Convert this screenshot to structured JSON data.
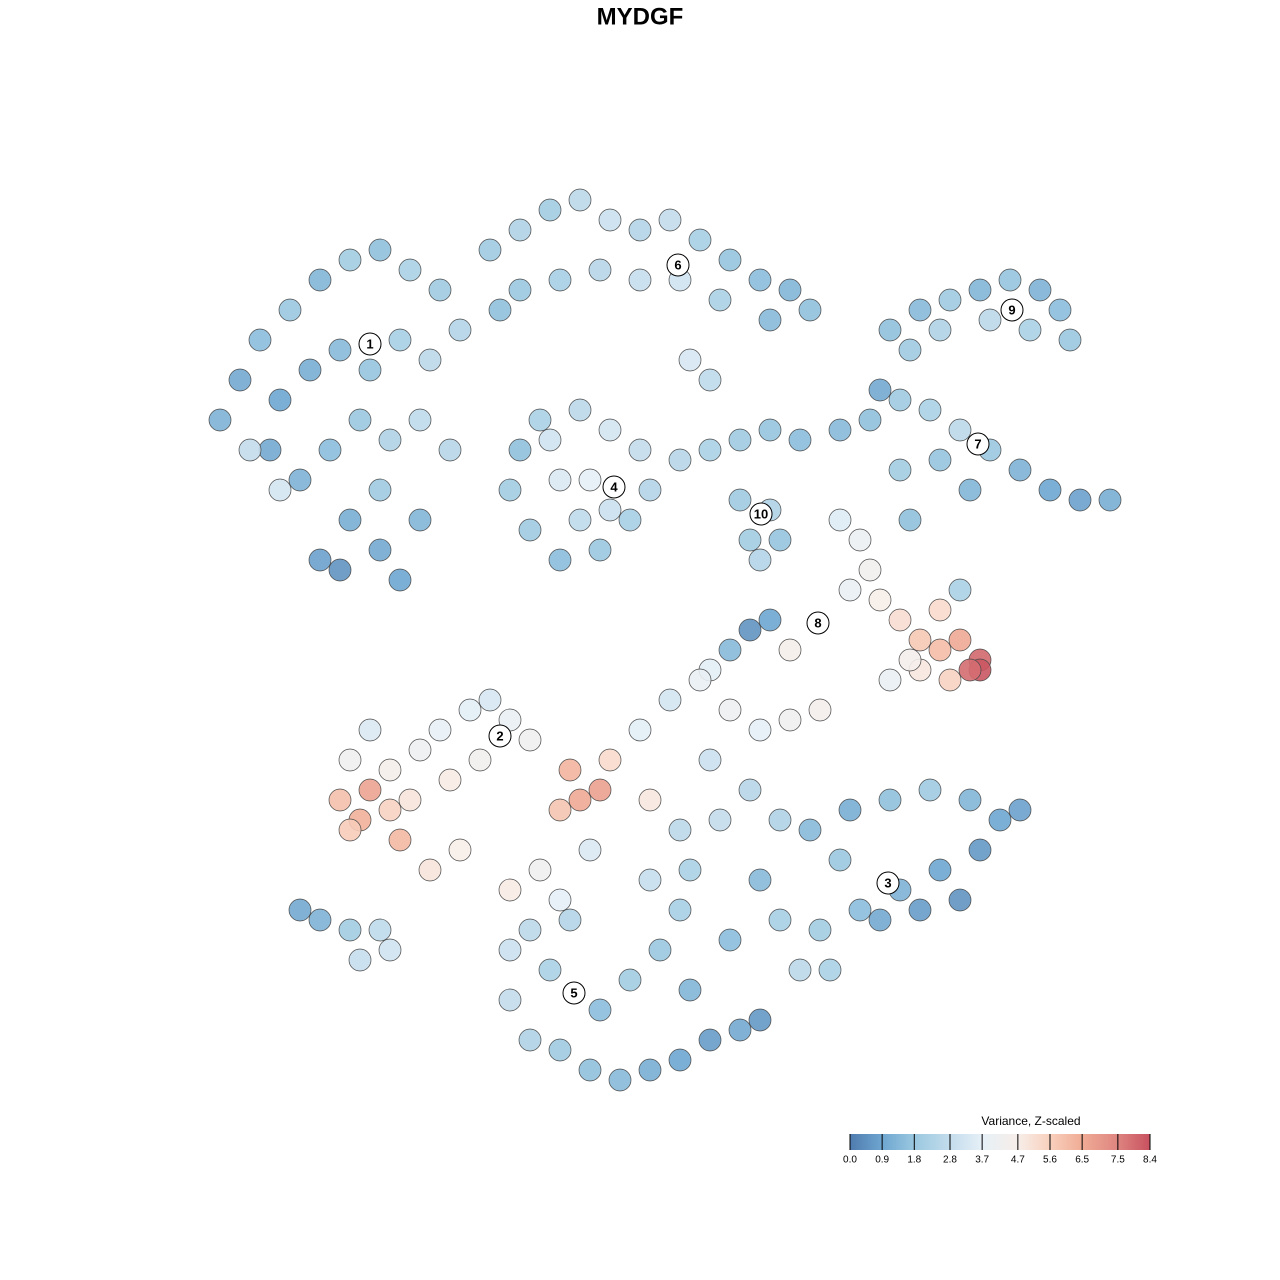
{
  "chart_data": {
    "type": "scatter",
    "title": "MYDGF",
    "xlim": [
      -64,
      64
    ],
    "ylim": [
      -64,
      64
    ],
    "x": [
      -42,
      -40,
      -38,
      -35,
      -32,
      -29,
      -26,
      -23,
      -20,
      -18,
      -21,
      -24,
      -27,
      -30,
      -33,
      -36,
      -37,
      -34,
      -31,
      -28,
      -25,
      -22,
      -19,
      -26,
      -29,
      -32,
      -30,
      -26,
      -22,
      -24,
      -39,
      -36,
      -15,
      -12,
      -9,
      -6,
      -3,
      0,
      3,
      6,
      9,
      12,
      15,
      17,
      13,
      8,
      4,
      0,
      -4,
      -8,
      -12,
      -14,
      5,
      7,
      -12,
      -10,
      -6,
      -3,
      0,
      1,
      -1,
      -4,
      -8,
      -11,
      -13,
      -8,
      -5,
      -3,
      -6,
      -9,
      4,
      7,
      10,
      13,
      16,
      10,
      13,
      11,
      14,
      12,
      25,
      28,
      31,
      34,
      37,
      40,
      42,
      43,
      39,
      35,
      30,
      27,
      20,
      23,
      26,
      29,
      32,
      35,
      38,
      41,
      44,
      47,
      30,
      26,
      33,
      27,
      24,
      20,
      22,
      23,
      21,
      24,
      26,
      28,
      30,
      32,
      34,
      34,
      33,
      31,
      28,
      25,
      27,
      30,
      32,
      11,
      13,
      9,
      15,
      7,
      -30,
      -28,
      -27,
      -29,
      -25,
      -24,
      -23,
      -25,
      -22,
      -20,
      -17,
      -15,
      -13,
      -11,
      -19,
      -16,
      -21,
      -18,
      -27,
      -29,
      -7,
      -6,
      -4,
      -8,
      -3,
      1,
      0,
      3,
      6,
      9,
      12,
      15,
      18,
      7,
      4,
      8,
      11,
      14,
      -5,
      -10,
      -13,
      1,
      5,
      -8,
      17,
      21,
      25,
      29,
      33,
      36,
      38,
      34,
      30,
      26,
      22,
      18,
      16,
      19,
      24,
      28,
      32,
      20,
      12,
      14,
      -13,
      -11,
      -9,
      -13,
      -11,
      -8,
      -5,
      -2,
      1,
      4,
      7,
      10,
      12,
      -4,
      -1,
      2,
      5,
      -7,
      4,
      9,
      -34,
      -32,
      -29,
      -26,
      -28,
      -25
    ],
    "y": [
      22,
      26,
      30,
      33,
      36,
      38,
      39,
      37,
      35,
      31,
      28,
      30,
      27,
      29,
      27,
      24,
      19,
      16,
      19,
      22,
      20,
      22,
      19,
      15,
      12,
      8,
      7,
      9,
      12,
      6,
      19,
      15,
      39,
      41,
      43,
      44,
      42,
      41,
      42,
      40,
      38,
      36,
      35,
      33,
      32,
      34,
      36,
      36,
      37,
      36,
      35,
      33,
      28,
      26,
      19,
      22,
      23,
      21,
      19,
      15,
      12,
      9,
      8,
      11,
      15,
      16,
      16,
      13,
      12,
      20,
      18,
      19,
      20,
      21,
      20,
      14,
      13,
      10,
      10,
      8,
      31,
      33,
      34,
      35,
      36,
      35,
      33,
      30,
      31,
      32,
      31,
      29,
      21,
      22,
      24,
      23,
      21,
      19,
      17,
      15,
      14,
      14,
      18,
      17,
      15,
      12,
      25,
      12,
      10,
      7,
      5,
      4,
      2,
      0,
      -1,
      0,
      -2,
      -3,
      -3,
      -4,
      -3,
      -4,
      -2,
      3,
      5,
      1,
      2,
      -1,
      -1,
      -3,
      -16,
      -18,
      -15,
      -19,
      -17,
      -20,
      -16,
      -13,
      -11,
      -9,
      -7,
      -6,
      -8,
      -10,
      -14,
      -12,
      -23,
      -21,
      -9,
      -12,
      -13,
      -16,
      -15,
      -17,
      -12,
      -16,
      -9,
      -6,
      -4,
      -7,
      -9,
      -8,
      -7,
      -12,
      -19,
      -18,
      -15,
      -18,
      -21,
      -23,
      -25,
      -24,
      -23,
      -26,
      -19,
      -17,
      -16,
      -15,
      -16,
      -18,
      -17,
      -21,
      -23,
      -25,
      -27,
      -29,
      -33,
      -33,
      -28,
      -27,
      -26,
      -22,
      -24,
      -28,
      -31,
      -29,
      -33,
      -36,
      -40,
      -41,
      -43,
      -44,
      -43,
      -42,
      -40,
      -39,
      -38,
      -37,
      -34,
      -31,
      -35,
      -28,
      -27,
      -30,
      -27,
      -28,
      -29,
      -29,
      -32,
      -31
    ],
    "values": [
      1.2,
      1.0,
      1.5,
      1.8,
      1.3,
      2.0,
      1.6,
      2.2,
      1.9,
      2.4,
      2.6,
      2.1,
      1.7,
      1.4,
      1.1,
      0.9,
      1.0,
      1.2,
      1.5,
      1.8,
      2.3,
      2.7,
      2.5,
      1.9,
      1.1,
      0.8,
      0.5,
      1.0,
      1.3,
      0.9,
      2.8,
      3.2,
      1.9,
      2.3,
      2.0,
      2.6,
      3.0,
      2.4,
      2.8,
      2.1,
      1.7,
      1.5,
      1.3,
      1.6,
      1.4,
      2.2,
      3.1,
      2.9,
      2.5,
      2.1,
      1.8,
      1.6,
      3.3,
      2.7,
      1.6,
      2.2,
      2.6,
      3.2,
      2.8,
      2.4,
      2.1,
      1.8,
      1.5,
      1.9,
      2.0,
      3.4,
      3.7,
      3.0,
      2.7,
      3.1,
      2.5,
      2.2,
      1.9,
      1.7,
      1.5,
      1.9,
      2.3,
      2.0,
      1.7,
      2.4,
      1.6,
      1.4,
      1.9,
      1.3,
      1.7,
      1.2,
      1.5,
      1.8,
      2.2,
      2.6,
      2.3,
      1.9,
      1.4,
      1.6,
      1.9,
      2.2,
      2.6,
      1.8,
      1.2,
      0.9,
      0.8,
      1.1,
      1.7,
      2.0,
      1.3,
      1.6,
      1.0,
      3.5,
      4.0,
      4.4,
      3.9,
      4.7,
      5.2,
      5.8,
      6.1,
      6.6,
      8.0,
      8.3,
      7.9,
      5.5,
      4.9,
      3.9,
      4.5,
      5.3,
      2.2,
      0.5,
      0.9,
      1.4,
      4.6,
      3.6,
      6.0,
      6.4,
      6.7,
      5.7,
      5.5,
      6.2,
      5.0,
      4.6,
      4.1,
      3.8,
      3.6,
      3.3,
      3.9,
      4.3,
      4.8,
      4.4,
      5.0,
      4.7,
      3.4,
      4.2,
      6.3,
      6.6,
      6.8,
      5.9,
      5.3,
      4.9,
      3.6,
      3.2,
      3.9,
      4.1,
      3.7,
      4.3,
      4.5,
      3.0,
      2.6,
      2.8,
      2.5,
      2.3,
      3.4,
      4.2,
      4.8,
      2.9,
      2.2,
      3.7,
      1.4,
      1.1,
      1.6,
      1.9,
      1.3,
      0.9,
      0.8,
      0.6,
      0.9,
      1.2,
      1.5,
      2.0,
      2.6,
      2.2,
      1.0,
      0.7,
      0.5,
      1.8,
      1.4,
      2.1,
      3.0,
      2.6,
      2.2,
      2.8,
      2.3,
      1.9,
      1.6,
      1.4,
      1.1,
      0.9,
      0.7,
      1.0,
      0.6,
      1.5,
      2.0,
      1.8,
      1.3,
      2.4,
      2.1,
      1.5,
      1.0,
      1.2,
      2.0,
      2.7,
      2.9,
      3.1
    ],
    "annotations": [
      {
        "text": "1",
        "x": -27,
        "y": 29.6
      },
      {
        "text": "6",
        "x": 3.8,
        "y": 37.5
      },
      {
        "text": "9",
        "x": 37.2,
        "y": 33
      },
      {
        "text": "7",
        "x": 33.8,
        "y": 19.6
      },
      {
        "text": "4",
        "x": -2.6,
        "y": 15.3
      },
      {
        "text": "10",
        "x": 12.1,
        "y": 12.6
      },
      {
        "text": "8",
        "x": 17.8,
        "y": 1.7
      },
      {
        "text": "2",
        "x": -14,
        "y": -9.6
      },
      {
        "text": "3",
        "x": 24.8,
        "y": -24.3
      },
      {
        "text": "5",
        "x": -6.6,
        "y": -35.3
      }
    ],
    "colorbar": {
      "title": "Variance, Z-scaled",
      "lim": [
        0,
        8.4
      ],
      "ticks": [
        {
          "value": 0,
          "label": "0.0"
        },
        0.9,
        1.8,
        2.8,
        3.7,
        4.7,
        5.6,
        6.5,
        7.5,
        8.4
      ],
      "colors": [
        "#4f7bae",
        "#6ea6d0",
        "#9ac8e0",
        "#c3dcec",
        "#e6f0f7",
        "#f7eee9",
        "#f8d0bd",
        "#f0ac95",
        "#de8480",
        "#c8515f"
      ]
    }
  }
}
